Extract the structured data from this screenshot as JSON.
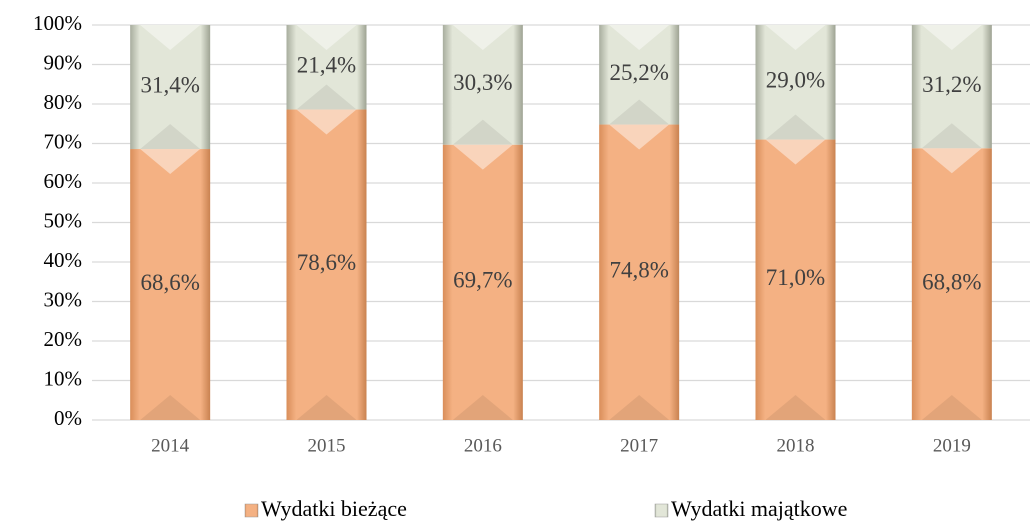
{
  "chart_data": {
    "type": "bar",
    "stacked": true,
    "categories": [
      "2014",
      "2015",
      "2016",
      "2017",
      "2018",
      "2019"
    ],
    "series": [
      {
        "name": "Wydatki bieżące",
        "color": "#f4b183",
        "values": [
          68.6,
          78.6,
          69.7,
          74.8,
          71.0,
          68.8
        ],
        "value_labels": [
          "68,6%",
          "78,6%",
          "69,7%",
          "74,8%",
          "71,0%",
          "68,8%"
        ]
      },
      {
        "name": "Wydatki majątkowe",
        "color": "#e2e6d8",
        "values": [
          31.4,
          21.4,
          30.3,
          25.2,
          29.0,
          31.2
        ],
        "value_labels": [
          "31,4%",
          "21,4%",
          "30,3%",
          "25,2%",
          "29,0%",
          "31,2%"
        ]
      }
    ],
    "ylim": [
      0,
      100
    ],
    "yticks": [
      {
        "value": 0,
        "label": "0%"
      },
      {
        "value": 10,
        "label": "10%"
      },
      {
        "value": 20,
        "label": "20%"
      },
      {
        "value": 30,
        "label": "30%"
      },
      {
        "value": 40,
        "label": "40%"
      },
      {
        "value": 50,
        "label": "50%"
      },
      {
        "value": 60,
        "label": "60%"
      },
      {
        "value": 70,
        "label": "70%"
      },
      {
        "value": 80,
        "label": "80%"
      },
      {
        "value": 90,
        "label": "90%"
      },
      {
        "value": 100,
        "label": "100%"
      }
    ],
    "grid": true,
    "legend": "bottom"
  }
}
